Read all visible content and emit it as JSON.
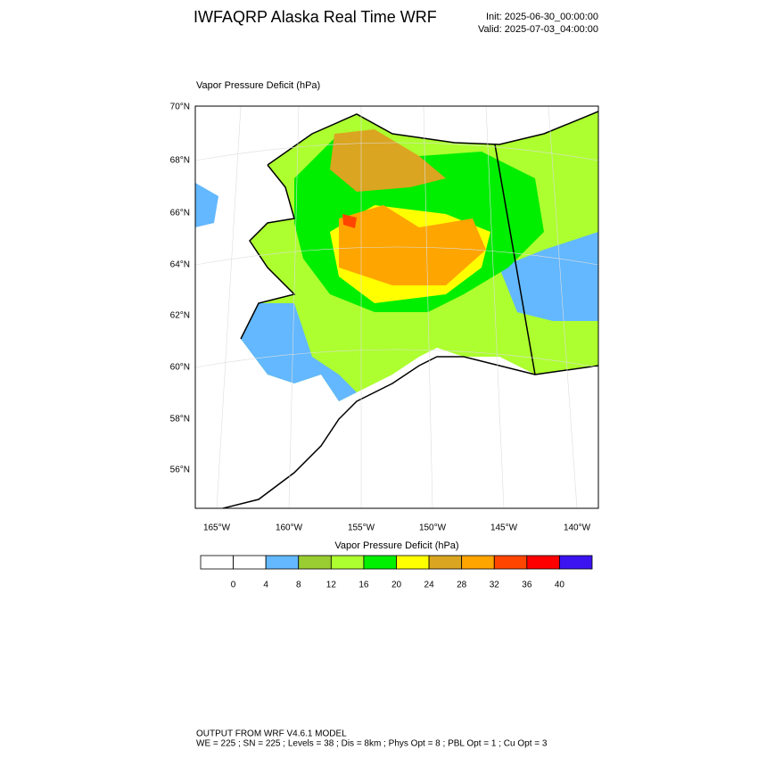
{
  "header": {
    "title": "IWFAQRP Alaska Real Time WRF",
    "init": "Init: 2025-06-30_00:00:00",
    "valid": "Valid: 2025-07-03_04:00:00"
  },
  "map": {
    "label": "Vapor Pressure Deficit   (hPa)",
    "lat_labels": [
      "70°N",
      "68°N",
      "66°N",
      "64°N",
      "62°N",
      "60°N",
      "58°N",
      "56°N"
    ],
    "lon_labels": [
      "165°W",
      "160°W",
      "155°W",
      "150°W",
      "145°W",
      "140°W"
    ]
  },
  "colorbar": {
    "title": "Vapor Pressure Deficit  (hPa)",
    "levels": [
      0,
      4,
      8,
      12,
      16,
      20,
      24,
      28,
      32,
      36,
      40
    ],
    "colors": [
      "#ffffff",
      "#ffffff",
      "#63b8ff",
      "#9acd32",
      "#adff2f",
      "#00ee00",
      "#ffff00",
      "#daa520",
      "#ffa500",
      "#ff4500",
      "#ff0000",
      "#3c14f0"
    ]
  },
  "footer": {
    "line1": "OUTPUT FROM WRF V4.6.1 MODEL",
    "line2": "WE = 225 ; SN = 225 ; Levels = 38 ; Dis = 8km ; Phys Opt = 8 ; PBL Opt = 1 ; Cu Opt = 3"
  }
}
